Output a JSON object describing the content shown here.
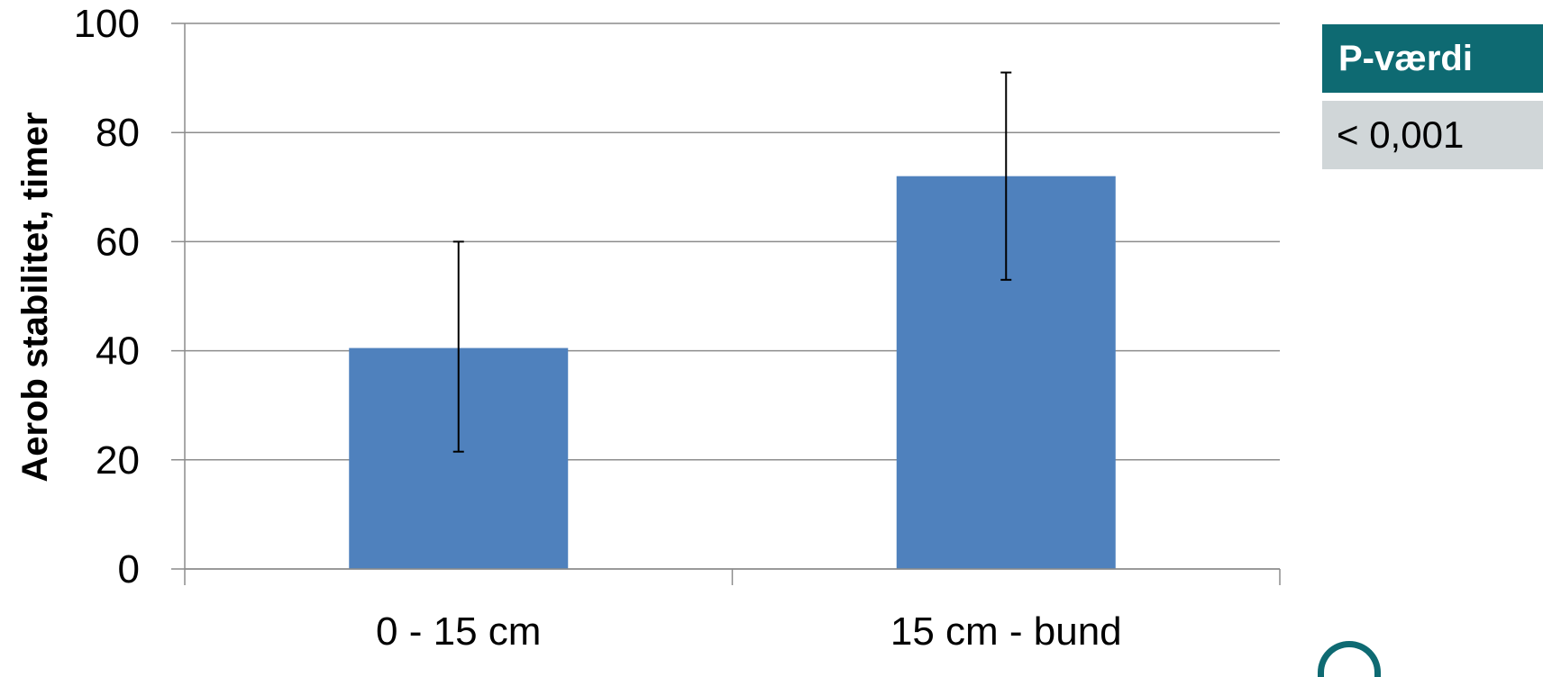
{
  "chart_data": {
    "type": "bar",
    "title": "",
    "xlabel": "",
    "ylabel": "Aerob stabilitet, timer",
    "ylim": [
      0,
      100
    ],
    "yticks": [
      0,
      20,
      40,
      60,
      80,
      100
    ],
    "categories": [
      "0 - 15 cm",
      "15 cm - bund"
    ],
    "values": [
      40.5,
      72
    ],
    "error_bars": [
      {
        "low": 21.5,
        "high": 60
      },
      {
        "low": 53,
        "high": 91
      }
    ],
    "bar_color": "#4f81bd",
    "grid": true,
    "legend": "none"
  },
  "pvalue_table": {
    "header": "P-værdi",
    "value": "< 0,001",
    "header_color": "#0e6a72",
    "value_bg_color": "#d0d6d8"
  },
  "logo": {
    "icon": "logo-arc-icon"
  }
}
